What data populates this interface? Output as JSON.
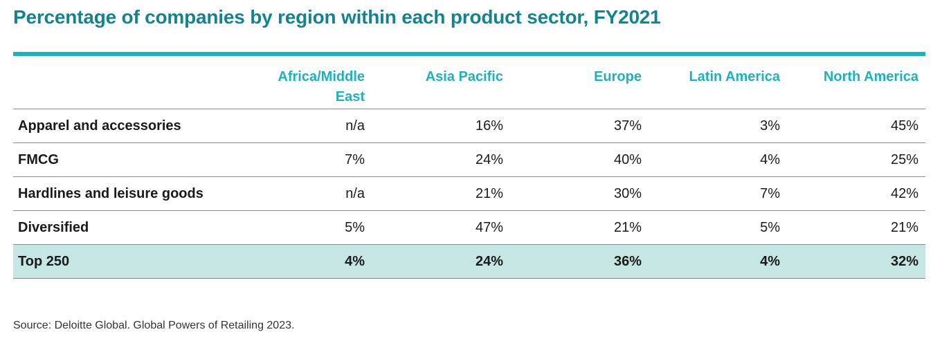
{
  "chart_data": {
    "type": "table",
    "title": "Percentage of companies by region within each product sector, FY2021",
    "columns": [
      "Africa/Middle East",
      "Asia Pacific",
      "Europe",
      "Latin America",
      "North America"
    ],
    "rows": [
      {
        "label": "Apparel and accessories",
        "values": [
          "n/a",
          "16%",
          "37%",
          "3%",
          "45%"
        ]
      },
      {
        "label": "FMCG",
        "values": [
          "7%",
          "24%",
          "40%",
          "4%",
          "25%"
        ]
      },
      {
        "label": "Hardlines and leisure goods",
        "values": [
          "n/a",
          "21%",
          "30%",
          "7%",
          "42%"
        ]
      },
      {
        "label": "Diversified",
        "values": [
          "5%",
          "47%",
          "21%",
          "5%",
          "21%"
        ]
      }
    ],
    "total": {
      "label": "Top 250",
      "values": [
        "4%",
        "24%",
        "36%",
        "4%",
        "32%"
      ]
    },
    "source": "Source: Deloitte Global. Global Powers of Retailing 2023."
  },
  "colors": {
    "title": "#13848f",
    "header_text": "#1eb0bf",
    "top_rule": "#1eb0bf",
    "total_row_bg": "#c5e6e3"
  }
}
